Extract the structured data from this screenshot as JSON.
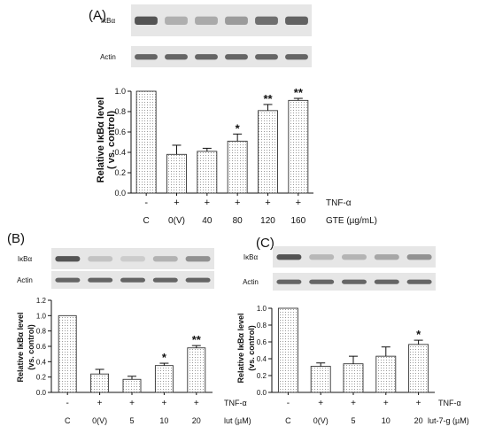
{
  "colors": {
    "bar_fill": "#eeeeee",
    "bar_stroke": "#333333",
    "axis": "#111111",
    "band_dark": "#3a3a3a",
    "blot_bg": "#e6e6e6"
  },
  "chart_data": [
    {
      "panel": "(A)",
      "type": "bar",
      "blot_labels": [
        "IκBα",
        "Actin"
      ],
      "ylabel_lines": [
        "Relative IκBα level",
        "( vs. control)"
      ],
      "yticks": [
        "0.0",
        "0.2",
        "0.4",
        "0.6",
        "0.8",
        "1.0"
      ],
      "ylim": [
        0,
        1.0
      ],
      "categories": [
        "C",
        "0(V)",
        "40",
        "80",
        "120",
        "160"
      ],
      "treatment_signs": [
        "-",
        "+",
        "+",
        "+",
        "+",
        "+"
      ],
      "treatment_label": "TNF-α",
      "xunit_label": "GTE (µg/mL)",
      "values": [
        1.0,
        0.38,
        0.41,
        0.51,
        0.81,
        0.91
      ],
      "errors": [
        0,
        0.09,
        0.03,
        0.07,
        0.06,
        0.02
      ],
      "significance": [
        "",
        "",
        "",
        "*",
        "**",
        "**"
      ]
    },
    {
      "panel": "(B)",
      "type": "bar",
      "blot_labels": [
        "IκBα",
        "Actin"
      ],
      "ylabel_lines": [
        "Relative IκBα level",
        "(vs. control)"
      ],
      "yticks": [
        "0.0",
        "0.2",
        "0.4",
        "0.6",
        "0.8",
        "1.0",
        "1.2"
      ],
      "ylim": [
        0,
        1.2
      ],
      "categories": [
        "C",
        "0(V)",
        "5",
        "10",
        "20"
      ],
      "treatment_signs": [
        "-",
        "+",
        "+",
        "+",
        "+"
      ],
      "treatment_label": "TNF-α",
      "xunit_label": "lut (µM)",
      "values": [
        1.0,
        0.24,
        0.17,
        0.35,
        0.58
      ],
      "errors": [
        0,
        0.06,
        0.04,
        0.03,
        0.03
      ],
      "significance": [
        "",
        "",
        "",
        "*",
        "**"
      ]
    },
    {
      "panel": "(C)",
      "type": "bar",
      "blot_labels": [
        "IκBα",
        "Actin"
      ],
      "ylabel_lines": [
        "Relative IκBα level",
        "(vs. control)"
      ],
      "yticks": [
        "0.0",
        "0.2",
        "0.4",
        "0.6",
        "0.8",
        "1.0"
      ],
      "ylim": [
        0,
        1.0
      ],
      "categories": [
        "C",
        "0(V)",
        "5",
        "10",
        "20"
      ],
      "treatment_signs": [
        "-",
        "+",
        "+",
        "+",
        "+"
      ],
      "treatment_label": "TNF-α",
      "xunit_label": "lut-7-g (µM)",
      "values": [
        1.0,
        0.31,
        0.34,
        0.43,
        0.57
      ],
      "errors": [
        0,
        0.04,
        0.09,
        0.11,
        0.05
      ],
      "significance": [
        "",
        "",
        "",
        "",
        "*"
      ]
    }
  ]
}
